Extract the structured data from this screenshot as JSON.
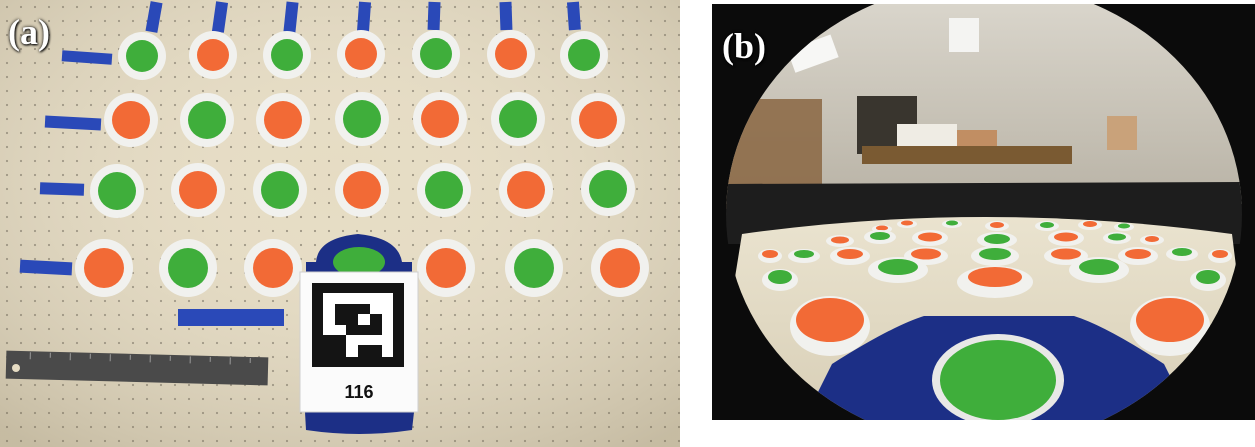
{
  "figure": {
    "panel_a": {
      "label": "(a)",
      "marker_id": "116"
    },
    "panel_b": {
      "label": "(b)"
    }
  },
  "colors": {
    "board": "#e9e0c9",
    "tape_blue": "#2a49b8",
    "disk_green": "#3fae3b",
    "disk_orange": "#f26a36",
    "disk_rim": "#f2f2f2",
    "ruler": "#4a4a4a",
    "base_navy": "#1c2f86"
  },
  "icons": [
    "fiducial-marker",
    "ruler",
    "robot-base",
    "fisheye-camera-view"
  ]
}
